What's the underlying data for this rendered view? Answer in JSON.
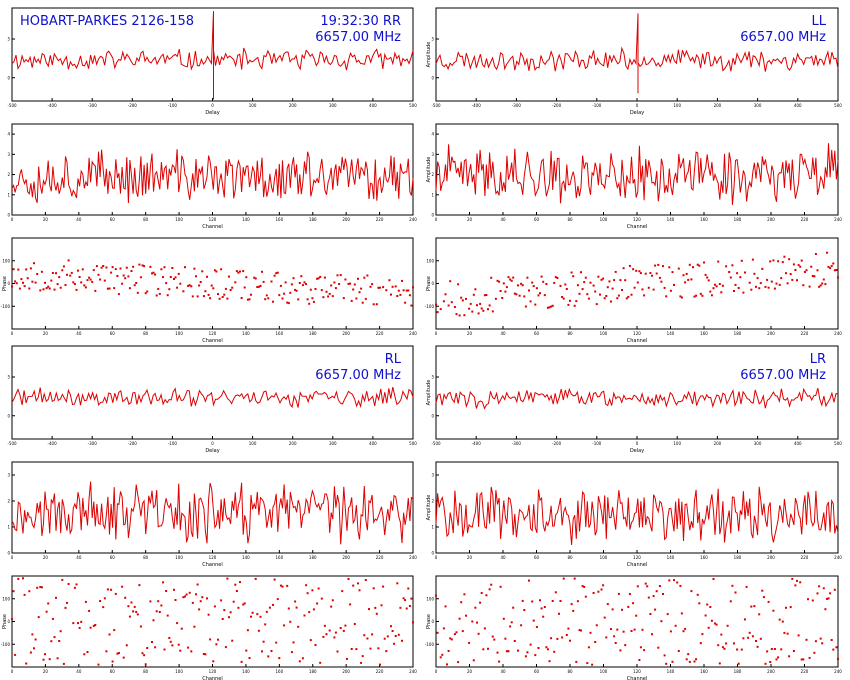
{
  "colors": {
    "trace": "#dd0000",
    "annotation": "#1010cc",
    "frame": "#000000"
  },
  "chart_data": [
    {
      "id": "rr-delay",
      "type": "line",
      "group": "RR",
      "kind": "amplitude",
      "ylabel": "",
      "xlabel": "Delay",
      "annotations": [
        "HOBART-PARKES 2126-158",
        "19:32:30  RR",
        "6657.00 MHz"
      ],
      "xticks": [
        "-500",
        "-400",
        "-300",
        "-200",
        "-100",
        "0",
        "100",
        "200",
        "300",
        "400",
        "500"
      ],
      "yticks": [
        "5",
        "0"
      ],
      "ylim": [
        -3,
        9
      ],
      "noise": {
        "seed": 11,
        "n": 200,
        "base": 2.3,
        "amp": 1.6
      },
      "spike": {
        "index": 100,
        "high": 8.6,
        "low": -2.8
      }
    },
    {
      "id": "ll-delay",
      "type": "line",
      "group": "LL",
      "kind": "amplitude",
      "ylabel": "Amplitude",
      "xlabel": "Delay",
      "annotations": [
        "LL",
        "6657.00 MHz"
      ],
      "xticks": [
        "-500",
        "-400",
        "-300",
        "-200",
        "-100",
        "0",
        "100",
        "200",
        "300",
        "400",
        "500"
      ],
      "yticks": [
        "5",
        "0"
      ],
      "ylim": [
        -3,
        9
      ],
      "noise": {
        "seed": 23,
        "n": 200,
        "base": 2.3,
        "amp": 1.6
      },
      "spike": {
        "index": 100,
        "high": 8.3,
        "low": -2.0
      }
    },
    {
      "id": "rr-channel",
      "type": "line",
      "group": "RR",
      "kind": "amplitude",
      "ylabel": "",
      "xlabel": "Channel",
      "xticks": [
        "0",
        "20",
        "40",
        "60",
        "80",
        "100",
        "120",
        "140",
        "160",
        "180",
        "200",
        "220",
        "240"
      ],
      "yticks": [
        "4",
        "3",
        "2",
        "1",
        "0"
      ],
      "ylim": [
        0,
        4.5
      ],
      "noise": {
        "seed": 37,
        "n": 256,
        "base": 1.9,
        "amp": 1.5
      }
    },
    {
      "id": "ll-channel",
      "type": "line",
      "group": "LL",
      "kind": "amplitude",
      "ylabel": "Amplitude",
      "xlabel": "Channel",
      "xticks": [
        "0",
        "20",
        "40",
        "60",
        "80",
        "100",
        "120",
        "140",
        "160",
        "180",
        "200",
        "220",
        "240"
      ],
      "yticks": [
        "4",
        "3",
        "2",
        "1",
        "0"
      ],
      "ylim": [
        0,
        4.5
      ],
      "noise": {
        "seed": 41,
        "n": 256,
        "base": 2.0,
        "amp": 1.6
      }
    },
    {
      "id": "rr-phase",
      "type": "scatter",
      "group": "RR",
      "kind": "phase",
      "ylabel": "Phase",
      "xlabel": "Channel",
      "xticks": [
        "0",
        "20",
        "40",
        "60",
        "80",
        "100",
        "120",
        "140",
        "160",
        "180",
        "200",
        "220",
        "240"
      ],
      "yticks": [
        "100",
        "0",
        "-100"
      ],
      "ylim": [
        -200,
        200
      ],
      "noise": {
        "seed": 53,
        "n": 256,
        "slope": -90,
        "spread": 70
      }
    },
    {
      "id": "ll-phase",
      "type": "scatter",
      "group": "LL",
      "kind": "phase",
      "ylabel": "Phase",
      "xlabel": "Channel",
      "xticks": [
        "0",
        "20",
        "40",
        "60",
        "80",
        "100",
        "120",
        "140",
        "160",
        "180",
        "200",
        "220",
        "240"
      ],
      "yticks": [
        "100",
        "0",
        "-100"
      ],
      "ylim": [
        -200,
        200
      ],
      "noise": {
        "seed": 67,
        "n": 256,
        "slope": 140,
        "spread": 80
      }
    },
    {
      "id": "rl-delay",
      "type": "line",
      "group": "RL",
      "kind": "amplitude",
      "ylabel": "",
      "xlabel": "Delay",
      "annotations": [
        "RL",
        "6657.00 MHz"
      ],
      "xticks": [
        "-500",
        "-400",
        "-300",
        "-200",
        "-100",
        "0",
        "100",
        "200",
        "300",
        "400",
        "500"
      ],
      "yticks": [
        "5",
        "0"
      ],
      "ylim": [
        -3,
        9
      ],
      "noise": {
        "seed": 71,
        "n": 200,
        "base": 2.3,
        "amp": 1.5
      }
    },
    {
      "id": "lr-delay",
      "type": "line",
      "group": "LR",
      "kind": "amplitude",
      "ylabel": "Amplitude",
      "xlabel": "Delay",
      "annotations": [
        "LR",
        "6657.00 MHz"
      ],
      "xticks": [
        "-500",
        "-400",
        "-300",
        "-200",
        "-100",
        "0",
        "100",
        "200",
        "300",
        "400",
        "500"
      ],
      "yticks": [
        "5",
        "0"
      ],
      "ylim": [
        -3,
        9
      ],
      "noise": {
        "seed": 83,
        "n": 200,
        "base": 2.3,
        "amp": 1.5
      }
    },
    {
      "id": "rl-channel",
      "type": "line",
      "group": "RL",
      "kind": "amplitude",
      "ylabel": "",
      "xlabel": "Channel",
      "xticks": [
        "0",
        "20",
        "40",
        "60",
        "80",
        "100",
        "120",
        "140",
        "160",
        "180",
        "200",
        "220",
        "240"
      ],
      "yticks": [
        "3",
        "2",
        "1",
        "0"
      ],
      "ylim": [
        0,
        3.5
      ],
      "noise": {
        "seed": 97,
        "n": 256,
        "base": 1.5,
        "amp": 1.3
      }
    },
    {
      "id": "lr-channel",
      "type": "line",
      "group": "LR",
      "kind": "amplitude",
      "ylabel": "Amplitude",
      "xlabel": "Channel",
      "xticks": [
        "0",
        "20",
        "40",
        "60",
        "80",
        "100",
        "120",
        "140",
        "160",
        "180",
        "200",
        "220",
        "240"
      ],
      "yticks": [
        "3",
        "2",
        "1",
        "0"
      ],
      "ylim": [
        0,
        3.5
      ],
      "noise": {
        "seed": 101,
        "n": 256,
        "base": 1.5,
        "amp": 1.3
      }
    },
    {
      "id": "rl-phase",
      "type": "scatter",
      "group": "RL",
      "kind": "phase",
      "ylabel": "Phase",
      "xlabel": "Channel",
      "xticks": [
        "0",
        "20",
        "40",
        "60",
        "80",
        "100",
        "120",
        "140",
        "160",
        "180",
        "200",
        "220",
        "240"
      ],
      "yticks": [
        "100",
        "0",
        "-100"
      ],
      "ylim": [
        -200,
        200
      ],
      "noise": {
        "seed": 113,
        "n": 256,
        "slope": 0,
        "spread": 190
      }
    },
    {
      "id": "lr-phase",
      "type": "scatter",
      "group": "LR",
      "kind": "phase",
      "ylabel": "Phase",
      "xlabel": "Channel",
      "xticks": [
        "0",
        "20",
        "40",
        "60",
        "80",
        "100",
        "120",
        "140",
        "160",
        "180",
        "200",
        "220",
        "240"
      ],
      "yticks": [
        "100",
        "0",
        "-100"
      ],
      "ylim": [
        -200,
        200
      ],
      "noise": {
        "seed": 127,
        "n": 256,
        "slope": 0,
        "spread": 190
      }
    }
  ]
}
